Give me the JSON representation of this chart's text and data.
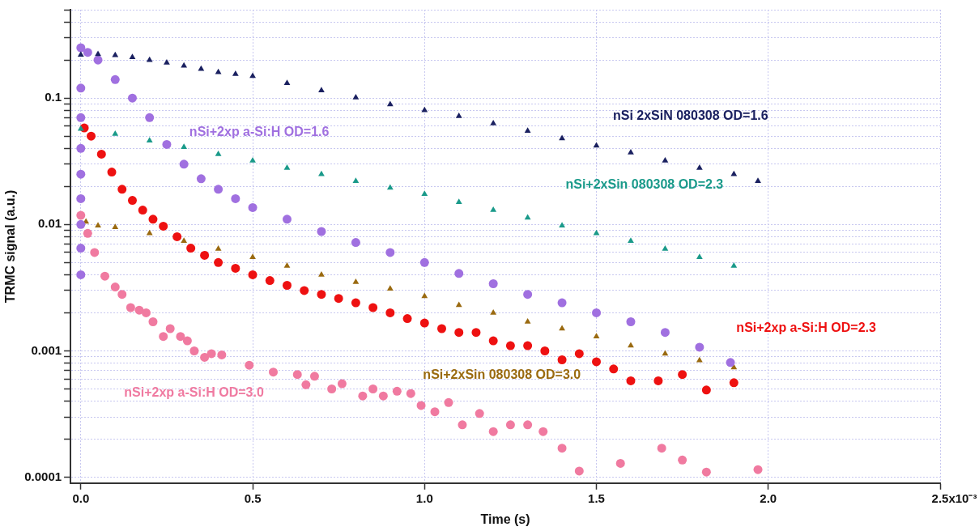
{
  "chart_data": {
    "type": "scatter",
    "xlabel": "Time (s)",
    "ylabel": "TRMC signal (a.u.)",
    "log": "y",
    "grid": true,
    "legend": false,
    "xlim": [
      -0.03,
      2.5
    ],
    "xticks": [
      {
        "value": 0,
        "label": "0.0"
      },
      {
        "value": 0.5,
        "label": "0.5"
      },
      {
        "value": 1,
        "label": "1.0"
      },
      {
        "value": 1.5,
        "label": "1.5"
      },
      {
        "value": 2,
        "label": "2.0"
      },
      2.5
    ],
    "annotations": [
      "x10⁻³"
    ],
    "ylim": [
      9e-05,
      0.5
    ],
    "yticks": [
      0.0001,
      {
        "value": 0.0002,
        "label": null
      },
      {
        "value": 0.0003,
        "label": null
      },
      {
        "value": 0.0004,
        "label": null
      },
      {
        "value": 0.0005,
        "label": null
      },
      {
        "value": 0.0006,
        "label": null
      },
      {
        "value": 0.0007,
        "label": null
      },
      {
        "value": 0.0008,
        "label": null
      },
      {
        "value": 0.0009,
        "label": null
      },
      0.001,
      {
        "value": 0.002,
        "label": null
      },
      {
        "value": 0.003,
        "label": null
      },
      {
        "value": 0.004,
        "label": null
      },
      {
        "value": 0.005,
        "label": null
      },
      {
        "value": 0.006,
        "label": null
      },
      {
        "value": 0.007,
        "label": null
      },
      {
        "value": 0.008,
        "label": null
      },
      {
        "value": 0.009,
        "label": null
      },
      0.01,
      {
        "value": 0.02,
        "label": null
      },
      {
        "value": 0.03,
        "label": null
      },
      {
        "value": 0.04,
        "label": null
      },
      {
        "value": 0.05,
        "label": null
      },
      {
        "value": 0.06,
        "label": null
      },
      {
        "value": 0.07,
        "label": null
      },
      {
        "value": 0.08,
        "label": null
      },
      {
        "value": 0.09,
        "label": null
      },
      0.1,
      {
        "value": 0.2,
        "label": null
      },
      {
        "value": 0.3,
        "label": null
      },
      {
        "value": 0.4,
        "label": null
      },
      {
        "value": 0.5,
        "label": null
      }
    ],
    "series": [
      {
        "name": "nSi 2xSiN 080308 OD=1.6",
        "color": "#1a2060",
        "marker": "triangle",
        "x": [
          0,
          0.05,
          0.1,
          0.15,
          0.2,
          0.25,
          0.3,
          0.35,
          0.4,
          0.45,
          0.5,
          0.6,
          0.7,
          0.8,
          0.9,
          1.0,
          1.1,
          1.2,
          1.3,
          1.4,
          1.5,
          1.6,
          1.7,
          1.8,
          1.9,
          1.97
        ],
        "values": [
          0.22,
          0.222,
          0.218,
          0.21,
          0.2,
          0.19,
          0.18,
          0.17,
          0.16,
          0.155,
          0.149,
          0.131,
          0.115,
          0.101,
          0.089,
          0.08,
          0.072,
          0.063,
          0.055,
          0.048,
          0.042,
          0.037,
          0.032,
          0.028,
          0.025,
          0.022
        ]
      },
      {
        "name": "nSi+2xSin 080308 OD=2.3",
        "color": "#1a9a8a",
        "marker": "triangle",
        "x": [
          0,
          0.1,
          0.2,
          0.3,
          0.4,
          0.5,
          0.6,
          0.7,
          0.8,
          0.9,
          1.0,
          1.1,
          1.2,
          1.3,
          1.4,
          1.5,
          1.6,
          1.7,
          1.8,
          1.9
        ],
        "values": [
          0.057,
          0.052,
          0.046,
          0.041,
          0.036,
          0.032,
          0.028,
          0.025,
          0.022,
          0.0195,
          0.0174,
          0.015,
          0.013,
          0.0113,
          0.0098,
          0.0085,
          0.0074,
          0.0064,
          0.0055,
          0.0047
        ]
      },
      {
        "name": "nSi+2xp a-Si:H OD=1.6",
        "color": "#a070e0",
        "marker": "circle",
        "x": [
          0,
          0,
          0,
          0,
          0,
          0,
          0,
          0,
          0,
          0.02,
          0.05,
          0.1,
          0.15,
          0.2,
          0.25,
          0.3,
          0.35,
          0.4,
          0.45,
          0.5,
          0.6,
          0.7,
          0.8,
          0.9,
          1.0,
          1.1,
          1.2,
          1.3,
          1.4,
          1.5,
          1.6,
          1.7,
          1.8,
          1.89
        ],
        "values": [
          0.004,
          0.0065,
          0.01,
          0.016,
          0.025,
          0.04,
          0.07,
          0.12,
          0.25,
          0.23,
          0.2,
          0.14,
          0.1,
          0.07,
          0.043,
          0.03,
          0.023,
          0.019,
          0.016,
          0.0136,
          0.011,
          0.0088,
          0.0072,
          0.006,
          0.005,
          0.0041,
          0.0034,
          0.0028,
          0.0024,
          0.002,
          0.0017,
          0.0014,
          0.00107,
          0.00081
        ]
      },
      {
        "name": "nSi+2xp a-Si:H OD=2.3",
        "color": "#ee1111",
        "marker": "circle",
        "x": [
          0.01,
          0.03,
          0.06,
          0.09,
          0.12,
          0.15,
          0.18,
          0.21,
          0.24,
          0.28,
          0.32,
          0.36,
          0.4,
          0.45,
          0.5,
          0.55,
          0.6,
          0.65,
          0.7,
          0.75,
          0.8,
          0.85,
          0.9,
          0.95,
          1.0,
          1.05,
          1.1,
          1.15,
          1.2,
          1.25,
          1.3,
          1.35,
          1.4,
          1.45,
          1.5,
          1.55,
          1.6,
          1.68,
          1.75,
          1.82,
          1.9
        ],
        "values": [
          0.058,
          0.05,
          0.036,
          0.026,
          0.019,
          0.0155,
          0.013,
          0.011,
          0.0097,
          0.008,
          0.0065,
          0.0057,
          0.005,
          0.0045,
          0.004,
          0.0036,
          0.0033,
          0.003,
          0.0028,
          0.0026,
          0.0024,
          0.0022,
          0.002,
          0.0018,
          0.00166,
          0.0015,
          0.0014,
          0.0014,
          0.0012,
          0.0011,
          0.0011,
          0.001,
          0.00085,
          0.00095,
          0.00082,
          0.00072,
          0.00058,
          0.00058,
          0.00065,
          0.00049,
          0.00056
        ]
      },
      {
        "name": "nSi+2xSin 080308 OD=3.0",
        "color": "#9a6a10",
        "marker": "triangle",
        "x": [
          0.015,
          0.05,
          0.1,
          0.2,
          0.3,
          0.4,
          0.5,
          0.6,
          0.7,
          0.8,
          0.9,
          1.0,
          1.1,
          1.2,
          1.3,
          1.4,
          1.5,
          1.6,
          1.7,
          1.8,
          1.9
        ],
        "values": [
          0.0105,
          0.0098,
          0.0095,
          0.0085,
          0.0074,
          0.0064,
          0.0055,
          0.0047,
          0.004,
          0.0035,
          0.0031,
          0.0027,
          0.0023,
          0.002,
          0.0017,
          0.0015,
          0.0013,
          0.0011,
          0.00095,
          0.00084,
          0.00074
        ]
      },
      {
        "name": "nSi+2xp a-Si:H OD=3.0",
        "color": "#f07aa0",
        "marker": "circle",
        "x": [
          0,
          0.02,
          0.04,
          0.07,
          0.1,
          0.12,
          0.145,
          0.17,
          0.19,
          0.21,
          0.24,
          0.26,
          0.29,
          0.31,
          0.33,
          0.36,
          0.38,
          0.41,
          0.49,
          0.56,
          0.63,
          0.655,
          0.68,
          0.73,
          0.76,
          0.82,
          0.85,
          0.88,
          0.92,
          0.96,
          0.99,
          1.03,
          1.07,
          1.11,
          1.16,
          1.2,
          1.25,
          1.3,
          1.345,
          1.4,
          1.45,
          1.57,
          1.69,
          1.75,
          1.82,
          1.97
        ],
        "values": [
          0.0118,
          0.0085,
          0.006,
          0.0039,
          0.0032,
          0.0028,
          0.0022,
          0.0021,
          0.002,
          0.0017,
          0.0013,
          0.0015,
          0.0013,
          0.0012,
          0.001,
          0.00089,
          0.00095,
          0.00093,
          0.00077,
          0.00068,
          0.00065,
          0.00054,
          0.00063,
          0.0005,
          0.00055,
          0.00044,
          0.0005,
          0.00044,
          0.00048,
          0.00046,
          0.00037,
          0.00033,
          0.00039,
          0.00026,
          0.00032,
          0.00023,
          0.00026,
          0.00026,
          0.00023,
          0.00017,
          0.000112,
          0.000129,
          0.00017,
          0.000137,
          0.00011,
          0.000115
        ]
      }
    ]
  }
}
